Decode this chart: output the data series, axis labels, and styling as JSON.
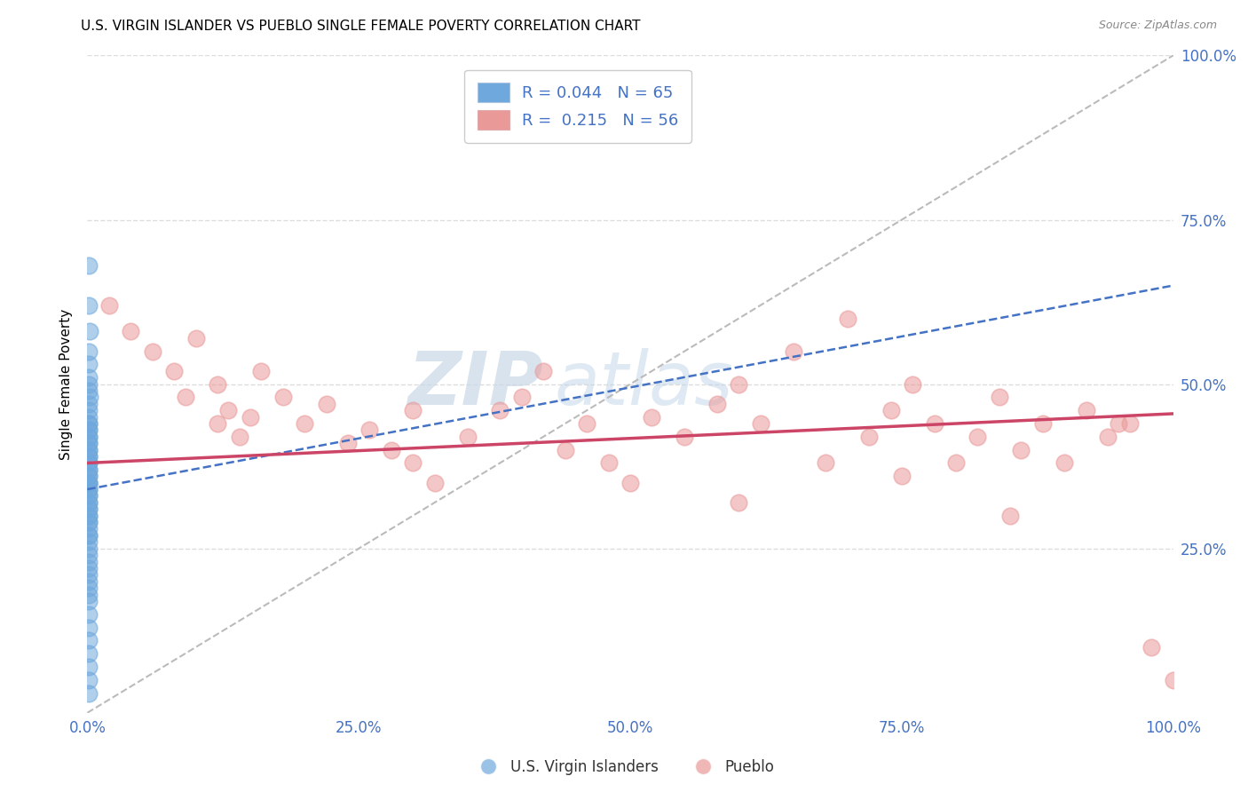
{
  "title": "U.S. VIRGIN ISLANDER VS PUEBLO SINGLE FEMALE POVERTY CORRELATION CHART",
  "source": "Source: ZipAtlas.com",
  "ylabel": "Single Female Poverty",
  "legend_r1": "R = 0.044",
  "legend_n1": "N = 65",
  "legend_r2": "R =  0.215",
  "legend_n2": "N = 56",
  "color_blue": "#6fa8dc",
  "color_pink": "#ea9999",
  "color_blue_line": "#4472c4",
  "color_pink_line": "#cc4466",
  "watermark_zip": "ZIP",
  "watermark_atlas": "atlas",
  "xlim": [
    0.0,
    1.0
  ],
  "ylim": [
    0.0,
    1.0
  ],
  "xtick_labels": [
    "0.0%",
    "25.0%",
    "50.0%",
    "75.0%",
    "100.0%"
  ],
  "xtick_values": [
    0.0,
    0.25,
    0.5,
    0.75,
    1.0
  ],
  "ytick_labels": [
    "25.0%",
    "50.0%",
    "75.0%",
    "100.0%"
  ],
  "ytick_values": [
    0.25,
    0.5,
    0.75,
    1.0
  ],
  "grid_color": "#dddddd",
  "background_color": "#ffffff",
  "tick_color": "#4472c4",
  "title_fontsize": 11,
  "axis_label_fontsize": 11,
  "legend_fontsize": 13,
  "blue_x": [
    0.001,
    0.001,
    0.002,
    0.001,
    0.001,
    0.001,
    0.001,
    0.001,
    0.002,
    0.001,
    0.001,
    0.001,
    0.001,
    0.001,
    0.001,
    0.001,
    0.001,
    0.001,
    0.001,
    0.001,
    0.001,
    0.001,
    0.001,
    0.001,
    0.001,
    0.001,
    0.001,
    0.001,
    0.001,
    0.001,
    0.001,
    0.001,
    0.001,
    0.001,
    0.001,
    0.001,
    0.001,
    0.001,
    0.001,
    0.001,
    0.001,
    0.001,
    0.001,
    0.001,
    0.001,
    0.001,
    0.001,
    0.001,
    0.001,
    0.001,
    0.001,
    0.001,
    0.001,
    0.001,
    0.001,
    0.001,
    0.001,
    0.001,
    0.001,
    0.001,
    0.001,
    0.001,
    0.001,
    0.001,
    0.001
  ],
  "blue_y": [
    0.68,
    0.62,
    0.58,
    0.55,
    0.53,
    0.51,
    0.5,
    0.49,
    0.48,
    0.47,
    0.46,
    0.45,
    0.44,
    0.44,
    0.43,
    0.43,
    0.42,
    0.42,
    0.41,
    0.41,
    0.4,
    0.4,
    0.39,
    0.39,
    0.38,
    0.38,
    0.37,
    0.37,
    0.36,
    0.36,
    0.35,
    0.35,
    0.35,
    0.34,
    0.34,
    0.33,
    0.33,
    0.32,
    0.32,
    0.31,
    0.31,
    0.3,
    0.3,
    0.29,
    0.29,
    0.28,
    0.27,
    0.27,
    0.26,
    0.25,
    0.24,
    0.23,
    0.22,
    0.21,
    0.2,
    0.19,
    0.18,
    0.17,
    0.15,
    0.13,
    0.11,
    0.09,
    0.07,
    0.05,
    0.03
  ],
  "pink_x": [
    0.02,
    0.04,
    0.06,
    0.08,
    0.09,
    0.1,
    0.12,
    0.12,
    0.13,
    0.14,
    0.15,
    0.16,
    0.18,
    0.2,
    0.22,
    0.24,
    0.26,
    0.28,
    0.3,
    0.3,
    0.32,
    0.35,
    0.38,
    0.4,
    0.42,
    0.44,
    0.46,
    0.48,
    0.5,
    0.52,
    0.55,
    0.58,
    0.6,
    0.62,
    0.65,
    0.68,
    0.7,
    0.72,
    0.74,
    0.76,
    0.78,
    0.8,
    0.82,
    0.84,
    0.86,
    0.88,
    0.9,
    0.92,
    0.94,
    0.96,
    0.98,
    1.0,
    0.6,
    0.75,
    0.85,
    0.95
  ],
  "pink_y": [
    0.62,
    0.58,
    0.55,
    0.52,
    0.48,
    0.57,
    0.44,
    0.5,
    0.46,
    0.42,
    0.45,
    0.52,
    0.48,
    0.44,
    0.47,
    0.41,
    0.43,
    0.4,
    0.38,
    0.46,
    0.35,
    0.42,
    0.46,
    0.48,
    0.52,
    0.4,
    0.44,
    0.38,
    0.35,
    0.45,
    0.42,
    0.47,
    0.5,
    0.44,
    0.55,
    0.38,
    0.6,
    0.42,
    0.46,
    0.5,
    0.44,
    0.38,
    0.42,
    0.48,
    0.4,
    0.44,
    0.38,
    0.46,
    0.42,
    0.44,
    0.1,
    0.05,
    0.32,
    0.36,
    0.3,
    0.44
  ],
  "blue_trend_x0": 0.0,
  "blue_trend_y0": 0.34,
  "blue_trend_x1": 1.0,
  "blue_trend_y1": 0.65,
  "pink_trend_x0": 0.0,
  "pink_trend_y0": 0.38,
  "pink_trend_x1": 1.0,
  "pink_trend_y1": 0.455
}
